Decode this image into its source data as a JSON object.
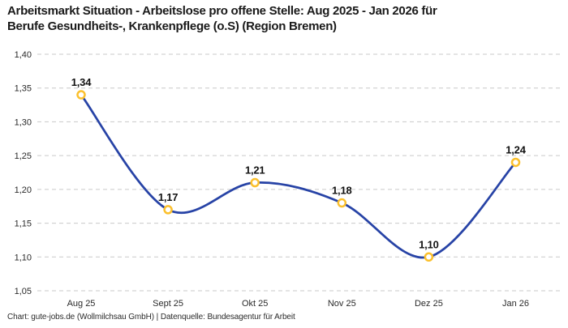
{
  "title": {
    "line1": "Arbeitsmarkt Situation - Arbeitslose pro offene Stelle: Aug 2025 - Jan 2026 für",
    "line2": "Berufe Gesundheits-, Krankenpflege (o.S) (Region Bremen)"
  },
  "footer": {
    "text": "Chart: gute-jobs.de (Wollmilchsau GmbH) | Datenquelle: Bundesagentur für Arbeit"
  },
  "chart_data": {
    "type": "line",
    "title": "Arbeitsmarkt Situation - Arbeitslose pro offene Stelle: Aug 2025 - Jan 2026 für Berufe Gesundheits-, Krankenpflege (o.S) (Region Bremen)",
    "categories": [
      "Aug 25",
      "Sept 25",
      "Okt 25",
      "Nov 25",
      "Dez 25",
      "Jan 26"
    ],
    "values": [
      1.34,
      1.17,
      1.21,
      1.18,
      1.1,
      1.24
    ],
    "value_labels": [
      "1,34",
      "1,17",
      "1,21",
      "1,18",
      "1,10",
      "1,24"
    ],
    "y_ticks": [
      {
        "label": "1,40",
        "value": 1.4
      },
      {
        "label": "1,35",
        "value": 1.35
      },
      {
        "label": "1,30",
        "value": 1.3
      },
      {
        "label": "1,25",
        "value": 1.25
      },
      {
        "label": "1,20",
        "value": 1.2
      },
      {
        "label": "1,15",
        "value": 1.15
      },
      {
        "label": "1,10",
        "value": 1.1
      },
      {
        "label": "1,05",
        "value": 1.05
      }
    ],
    "ylim": [
      1.05,
      1.4
    ],
    "xlabel": "",
    "ylabel": "",
    "grid": "horizontal-dashed",
    "legend": "none",
    "curve": "smooth-spline",
    "colors": {
      "line": "#2743A6",
      "marker_ring": "#FBC02D",
      "marker_fill": "#FFFFFF",
      "grid": "#C9C9C9",
      "value_label": "#111111",
      "tick_label": "#2A2A2A",
      "title": "#1A1A1A"
    }
  }
}
